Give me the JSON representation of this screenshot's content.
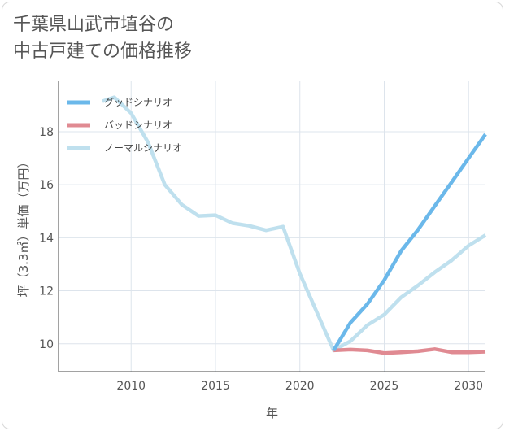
{
  "title_lines": [
    "千葉県山武市埴谷の",
    "中古戸建ての価格推移"
  ],
  "chart_data": {
    "type": "line",
    "title": "千葉県山武市埴谷の中古戸建ての価格推移",
    "xlabel": "年",
    "ylabel": "坪（3.3㎡）単価（万円）",
    "xlim": [
      2005.7,
      2031
    ],
    "ylim": [
      8.95,
      19.9
    ],
    "xticks": [
      2010,
      2015,
      2020,
      2025,
      2030
    ],
    "yticks": [
      10,
      12,
      14,
      16,
      18
    ],
    "grid": true,
    "legend_position": "top-left",
    "series": [
      {
        "name": "グッドシナリオ",
        "color": "#6bb8ea",
        "x": [
          2022,
          2023,
          2024,
          2025,
          2026,
          2027,
          2028,
          2029,
          2030,
          2031
        ],
        "values": [
          9.75,
          10.8,
          11.5,
          12.4,
          13.5,
          14.3,
          15.2,
          16.1,
          17.0,
          17.9
        ]
      },
      {
        "name": "バッドシナリオ",
        "color": "#e08a92",
        "x": [
          2022,
          2023,
          2024,
          2025,
          2026,
          2027,
          2028,
          2029,
          2030,
          2031
        ],
        "values": [
          9.75,
          9.78,
          9.75,
          9.65,
          9.68,
          9.72,
          9.8,
          9.68,
          9.68,
          9.7
        ]
      },
      {
        "name": "ノーマルシナリオ",
        "color": "#bfe0ee",
        "x": [
          2008.3,
          2009,
          2010,
          2011,
          2012,
          2013,
          2014,
          2015,
          2016,
          2017,
          2018,
          2019,
          2020,
          2021,
          2022,
          2023,
          2024,
          2025,
          2026,
          2027,
          2028,
          2029,
          2030,
          2031
        ],
        "values": [
          19.15,
          19.3,
          18.7,
          17.6,
          16.0,
          15.25,
          14.82,
          14.85,
          14.55,
          14.45,
          14.28,
          14.42,
          12.65,
          11.2,
          9.75,
          10.1,
          10.7,
          11.1,
          11.75,
          12.2,
          12.7,
          13.15,
          13.7,
          14.1
        ]
      }
    ]
  }
}
